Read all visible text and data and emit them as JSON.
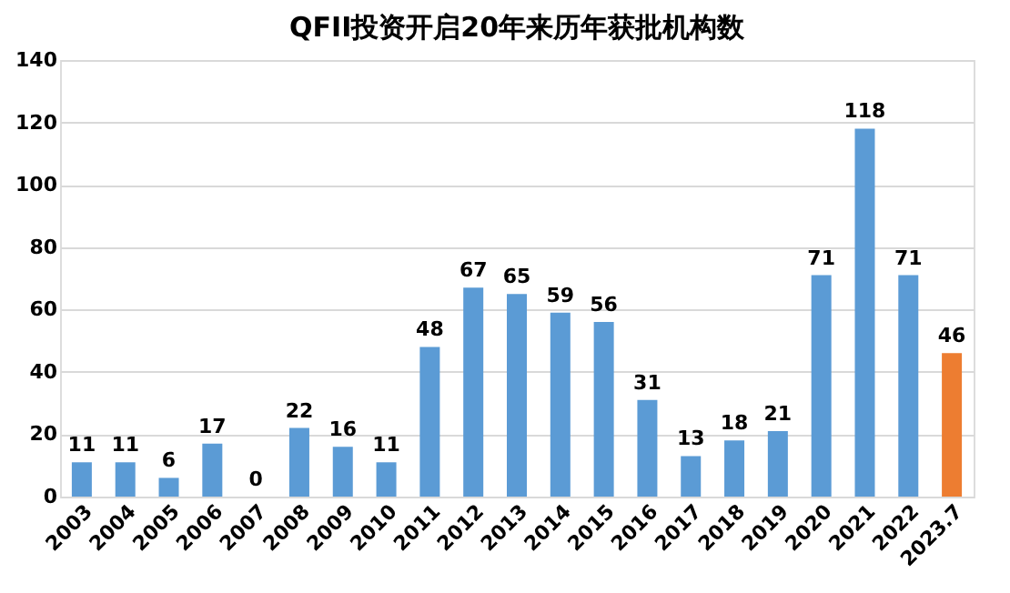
{
  "chart_data": {
    "type": "bar",
    "title": "QFII投资开启20年来历年获批机构数",
    "categories": [
      "2003",
      "2004",
      "2005",
      "2006",
      "2007",
      "2008",
      "2009",
      "2010",
      "2011",
      "2012",
      "2013",
      "2014",
      "2015",
      "2016",
      "2017",
      "2018",
      "2019",
      "2020",
      "2021",
      "2022",
      "2023.7"
    ],
    "values": [
      11,
      11,
      6,
      17,
      0,
      22,
      16,
      11,
      48,
      67,
      65,
      59,
      56,
      31,
      13,
      18,
      21,
      71,
      118,
      71,
      46
    ],
    "colors": [
      "#5b9bd5",
      "#5b9bd5",
      "#5b9bd5",
      "#5b9bd5",
      "#5b9bd5",
      "#5b9bd5",
      "#5b9bd5",
      "#5b9bd5",
      "#5b9bd5",
      "#5b9bd5",
      "#5b9bd5",
      "#5b9bd5",
      "#5b9bd5",
      "#5b9bd5",
      "#5b9bd5",
      "#5b9bd5",
      "#5b9bd5",
      "#5b9bd5",
      "#5b9bd5",
      "#5b9bd5",
      "#ed7d31"
    ],
    "ylim": [
      0,
      140
    ],
    "yticks": [
      0,
      20,
      40,
      60,
      80,
      100,
      120,
      140
    ],
    "grid": "y",
    "data_labels": true
  }
}
